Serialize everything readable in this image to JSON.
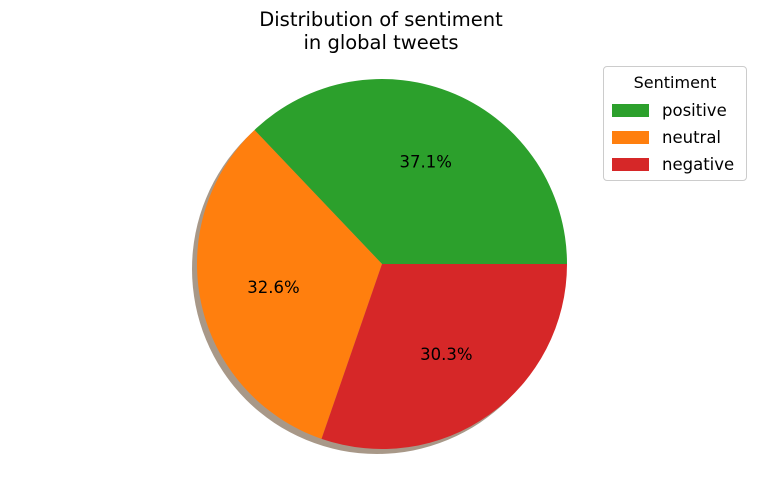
{
  "chart_data": {
    "type": "pie",
    "title": "Distribution of sentiment\nin global tweets",
    "title_lines": [
      "Distribution of sentiment",
      "in global tweets"
    ],
    "shadow": true,
    "legend": {
      "title": "Sentiment",
      "placement": "top-right"
    },
    "slices": [
      {
        "label": "positive",
        "value": 37.1,
        "pct_label": "37.1%",
        "color": "#2ca02c"
      },
      {
        "label": "neutral",
        "value": 32.6,
        "pct_label": "32.6%",
        "color": "#ff7f0e"
      },
      {
        "label": "negative",
        "value": 30.3,
        "pct_label": "30.3%",
        "color": "#d62728"
      }
    ]
  }
}
